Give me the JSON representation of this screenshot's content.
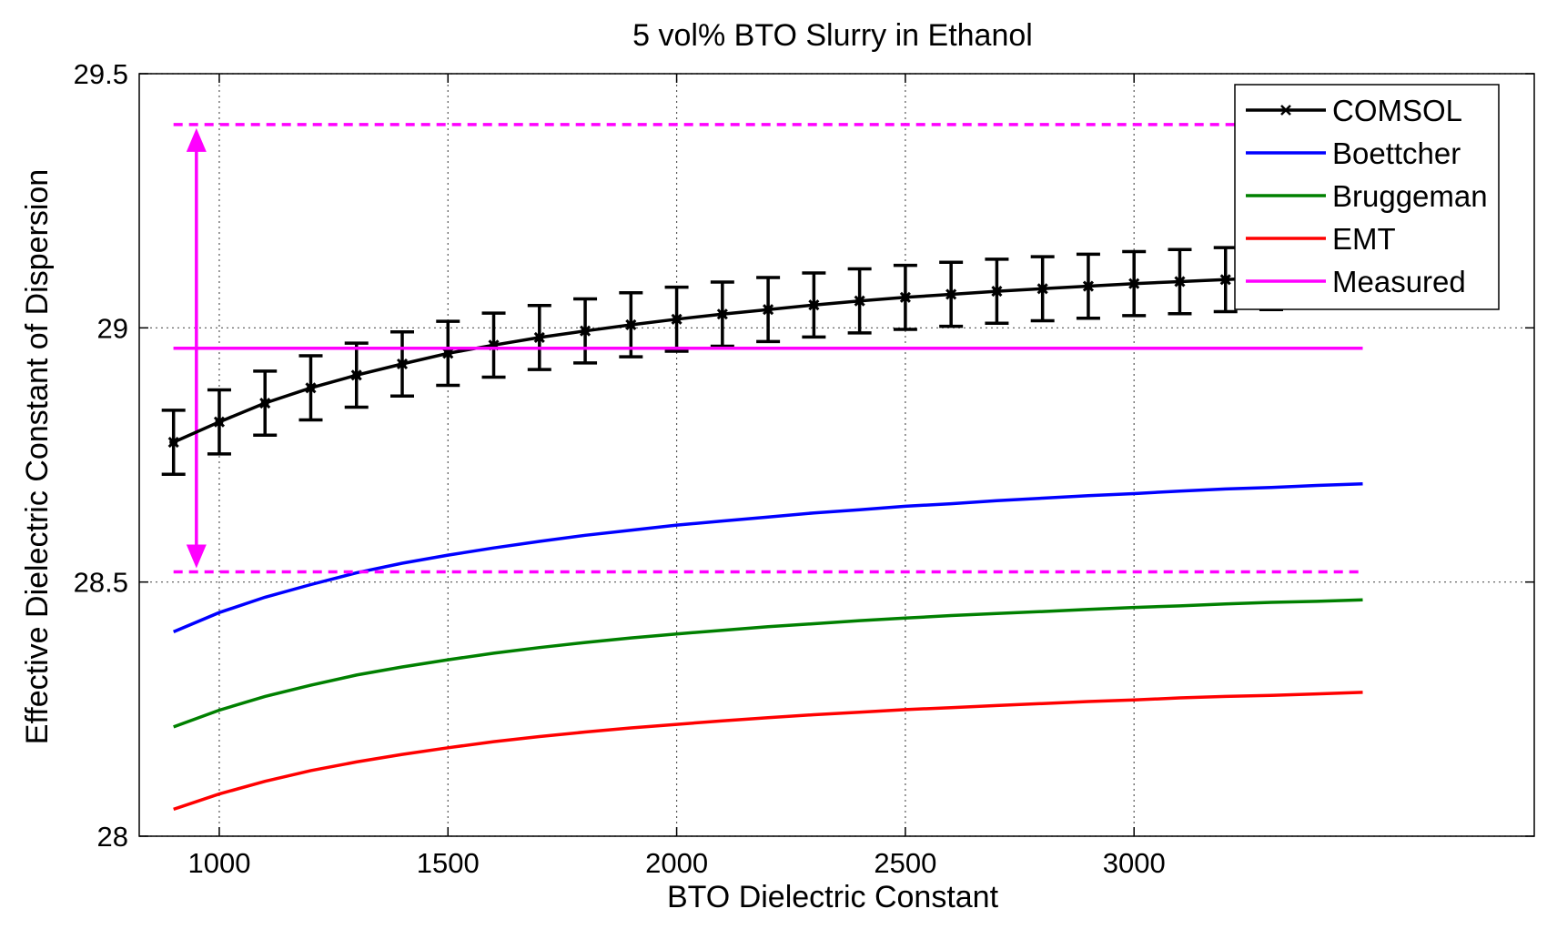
{
  "chart_data": {
    "type": "line",
    "title": "5 vol% BTO Slurry in Ethanol",
    "xlabel": "BTO Dielectric Constant",
    "ylabel": "Effective Dielectric Constant of Dispersion",
    "xlim": [
      825,
      3875
    ],
    "ylim": [
      28,
      29.5
    ],
    "xticks": [
      1000,
      1500,
      2000,
      2500,
      3000
    ],
    "yticks": [
      28,
      28.5,
      29,
      29.5
    ],
    "xtick_labels": [
      "1000",
      "1500",
      "2000",
      "2500",
      "3000"
    ],
    "ytick_labels": [
      "28",
      "28.5",
      "29",
      "29.5"
    ],
    "grid": true,
    "legend_position": "top-right",
    "series": [
      {
        "name": "COMSOL",
        "color": "#000000",
        "marker": "x",
        "x": [
          900,
          1000,
          1100,
          1200,
          1300,
          1400,
          1500,
          1600,
          1700,
          1800,
          1900,
          2000,
          2100,
          2200,
          2300,
          2400,
          2500,
          2600,
          2700,
          2800,
          2900,
          3000,
          3100,
          3200,
          3300,
          3400
        ],
        "y": [
          28.775,
          28.815,
          28.852,
          28.882,
          28.907,
          28.929,
          28.95,
          28.966,
          28.981,
          28.994,
          29.006,
          29.017,
          29.027,
          29.036,
          29.045,
          29.053,
          29.06,
          29.066,
          29.072,
          29.077,
          29.082,
          29.087,
          29.091,
          29.095,
          29.099,
          29.103
        ],
        "error": [
          0.063,
          0.063,
          0.063,
          0.063,
          0.063,
          0.063,
          0.063,
          0.063,
          0.063,
          0.063,
          0.063,
          0.063,
          0.063,
          0.063,
          0.063,
          0.063,
          0.063,
          0.063,
          0.063,
          0.063,
          0.063,
          0.063,
          0.063,
          0.063,
          0.063,
          0.063
        ]
      },
      {
        "name": "Boettcher",
        "color": "#0000ff",
        "x": [
          900,
          1000,
          1100,
          1200,
          1300,
          1400,
          1500,
          1600,
          1700,
          1800,
          1900,
          2000,
          2100,
          2200,
          2300,
          2400,
          2500,
          2600,
          2700,
          2800,
          2900,
          3000,
          3100,
          3200,
          3300,
          3400,
          3500
        ],
        "y": [
          28.402,
          28.44,
          28.47,
          28.495,
          28.518,
          28.537,
          28.553,
          28.567,
          28.58,
          28.592,
          28.602,
          28.612,
          28.62,
          28.628,
          28.636,
          28.642,
          28.649,
          28.654,
          28.66,
          28.665,
          28.67,
          28.674,
          28.679,
          28.683,
          28.686,
          28.69,
          28.693
        ]
      },
      {
        "name": "Bruggeman",
        "color": "#008000",
        "x": [
          900,
          1000,
          1100,
          1200,
          1300,
          1400,
          1500,
          1600,
          1700,
          1800,
          1900,
          2000,
          2100,
          2200,
          2300,
          2400,
          2500,
          2600,
          2700,
          2800,
          2900,
          3000,
          3100,
          3200,
          3300,
          3400,
          3500
        ],
        "y": [
          28.215,
          28.248,
          28.275,
          28.297,
          28.317,
          28.333,
          28.347,
          28.36,
          28.371,
          28.381,
          28.39,
          28.398,
          28.405,
          28.412,
          28.418,
          28.424,
          28.429,
          28.434,
          28.438,
          28.442,
          28.446,
          28.45,
          28.453,
          28.457,
          28.46,
          28.462,
          28.465
        ]
      },
      {
        "name": "EMT",
        "color": "#ff0000",
        "x": [
          900,
          1000,
          1100,
          1200,
          1300,
          1400,
          1500,
          1600,
          1700,
          1800,
          1900,
          2000,
          2100,
          2200,
          2300,
          2400,
          2500,
          2600,
          2700,
          2800,
          2900,
          3000,
          3100,
          3200,
          3300,
          3400,
          3500
        ],
        "y": [
          28.053,
          28.083,
          28.108,
          28.129,
          28.146,
          28.161,
          28.174,
          28.186,
          28.196,
          28.205,
          28.213,
          28.22,
          28.227,
          28.233,
          28.239,
          28.244,
          28.249,
          28.253,
          28.257,
          28.261,
          28.265,
          28.268,
          28.272,
          28.275,
          28.277,
          28.28,
          28.283
        ]
      },
      {
        "name": "Measured",
        "color": "#ff00ff",
        "x": [
          900,
          3500
        ],
        "y": [
          28.96,
          28.96
        ]
      }
    ],
    "measured_bounds": {
      "upper": 29.4,
      "lower": 28.52,
      "color": "#ff00ff",
      "x": [
        900,
        3500
      ],
      "arrow_x": 950
    }
  }
}
